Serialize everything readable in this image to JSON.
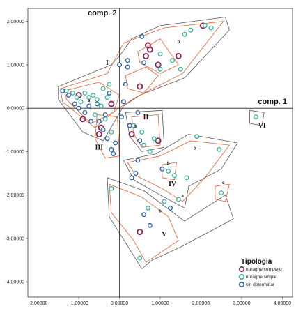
{
  "chart_data": {
    "type": "scatter",
    "title": "",
    "xlabel": "comp. 1",
    "ylabel": "comp. 2",
    "xlim": [
      -2.25,
      4.25
    ],
    "ylim": [
      -4.35,
      2.3
    ],
    "x_ticks": [
      -2,
      -1,
      0,
      1,
      2,
      3,
      4
    ],
    "x_tick_labels": [
      "-2,00000",
      "-1,00000",
      "0,00000",
      "1,00000",
      "2,00000",
      "3,00000",
      "4,00000"
    ],
    "y_ticks": [
      2,
      1,
      0,
      -1,
      -2,
      -3,
      -4
    ],
    "y_tick_labels": [
      "2,00000",
      "1,00000",
      "0,00000",
      "-1,00000",
      "-2,00000",
      "-3,00000",
      "-4,00000"
    ],
    "grid": false,
    "legend_position": "bottom-right",
    "legend_title": "Tipologia",
    "series": [
      {
        "name": "nuraghe complejo",
        "color": "#8b2252",
        "points": [
          [
            0.7,
            1.45
          ],
          [
            0.75,
            1.35
          ],
          [
            0.65,
            1.2
          ],
          [
            0.95,
            1.0
          ],
          [
            1.45,
            1.2
          ],
          [
            2.05,
            1.9
          ],
          [
            -1.0,
            0.3
          ],
          [
            0.5,
            0.5
          ],
          [
            -0.9,
            -0.25
          ],
          [
            -0.5,
            -0.6
          ],
          [
            -0.45,
            -0.45
          ],
          [
            -0.2,
            0.1
          ],
          [
            0.3,
            -0.6
          ],
          [
            0.95,
            -0.75
          ],
          [
            0.5,
            -2.85
          ]
        ]
      },
      {
        "name": "nuraghe simple",
        "color": "#3cb39a",
        "points": [
          [
            1.0,
            1.25
          ],
          [
            1.3,
            1.1
          ],
          [
            1.6,
            1.7
          ],
          [
            1.75,
            1.8
          ],
          [
            1.5,
            0.9
          ],
          [
            1.0,
            0.9
          ],
          [
            2.1,
            1.9
          ],
          [
            2.25,
            1.85
          ],
          [
            -1.3,
            0.4
          ],
          [
            -1.15,
            0.35
          ],
          [
            -1.05,
            0.25
          ],
          [
            -0.95,
            0.15
          ],
          [
            -0.85,
            0.35
          ],
          [
            -0.75,
            0.25
          ],
          [
            -0.65,
            0.3
          ],
          [
            -0.55,
            0.2
          ],
          [
            -0.4,
            0.45
          ],
          [
            -0.25,
            0.55
          ],
          [
            -0.3,
            0.25
          ],
          [
            -0.45,
            0.05
          ],
          [
            -0.6,
            -0.15
          ],
          [
            -0.35,
            -0.25
          ],
          [
            -0.2,
            -0.55
          ],
          [
            0.35,
            -0.4
          ],
          [
            0.55,
            -0.55
          ],
          [
            0.6,
            -0.85
          ],
          [
            0.75,
            -1.0
          ],
          [
            0.85,
            -0.7
          ],
          [
            1.2,
            -1.45
          ],
          [
            1.35,
            -1.55
          ],
          [
            1.65,
            -1.6
          ],
          [
            1.9,
            -0.65
          ],
          [
            2.45,
            -0.95
          ],
          [
            1.45,
            -2.1
          ],
          [
            1.1,
            -2.15
          ],
          [
            2.5,
            -1.95
          ],
          [
            3.35,
            -0.2
          ],
          [
            -0.2,
            -1.85
          ],
          [
            0.7,
            -2.3
          ],
          [
            0.5,
            -3.45
          ]
        ]
      },
      {
        "name": "sin determinar",
        "color": "#2a5fa8",
        "points": [
          [
            -1.4,
            0.4
          ],
          [
            -1.25,
            0.3
          ],
          [
            -1.1,
            0.1
          ],
          [
            -1.0,
            0.0
          ],
          [
            -0.85,
            -0.1
          ],
          [
            -0.75,
            0.05
          ],
          [
            -0.7,
            -0.3
          ],
          [
            -0.55,
            0.1
          ],
          [
            -0.5,
            -0.3
          ],
          [
            -0.4,
            -0.5
          ],
          [
            -0.35,
            -0.15
          ],
          [
            -0.25,
            0.35
          ],
          [
            -0.3,
            -0.7
          ],
          [
            -0.2,
            -0.95
          ],
          [
            -0.15,
            -1.05
          ],
          [
            -0.1,
            -0.8
          ],
          [
            0.05,
            -0.2
          ],
          [
            0.1,
            0.15
          ],
          [
            0.15,
            0.55
          ],
          [
            0.2,
            0.95
          ],
          [
            0.0,
            1.0
          ],
          [
            0.25,
            -0.4
          ],
          [
            0.4,
            -1.5
          ],
          [
            0.45,
            -1.2
          ],
          [
            0.3,
            -1.6
          ],
          [
            0.5,
            -0.75
          ],
          [
            0.6,
            -2.45
          ],
          [
            0.75,
            -2.7
          ],
          [
            1.05,
            -1.4
          ],
          [
            1.25,
            -2.3
          ],
          [
            0.45,
            -0.1
          ],
          [
            0.2,
            1.1
          ],
          [
            0.55,
            1.65
          ],
          [
            0.6,
            1.05
          ]
        ]
      }
    ],
    "annotations": [
      {
        "text": "I",
        "x": -0.3,
        "y": 1.0
      },
      {
        "text": "II",
        "x": 0.65,
        "y": -0.25
      },
      {
        "text": "III",
        "x": -0.5,
        "y": -0.95
      },
      {
        "text": "IV",
        "x": 1.3,
        "y": -1.8
      },
      {
        "text": "V",
        "x": 1.1,
        "y": -2.95
      },
      {
        "text": "VI",
        "x": 3.5,
        "y": -0.45
      }
    ],
    "sub_labels": [
      {
        "text": "b",
        "x": 1.45,
        "y": 1.5
      },
      {
        "text": "a",
        "x": -0.75,
        "y": 0.15
      },
      {
        "text": "b",
        "x": 0.4,
        "y": -0.45
      },
      {
        "text": "b",
        "x": 1.85,
        "y": -0.95
      },
      {
        "text": "a",
        "x": 1.55,
        "y": -2.05
      },
      {
        "text": "b",
        "x": 1.0,
        "y": -2.4
      },
      {
        "text": "c",
        "x": 2.55,
        "y": -1.75
      },
      {
        "text": "b",
        "x": 1.2,
        "y": -1.3
      }
    ]
  }
}
